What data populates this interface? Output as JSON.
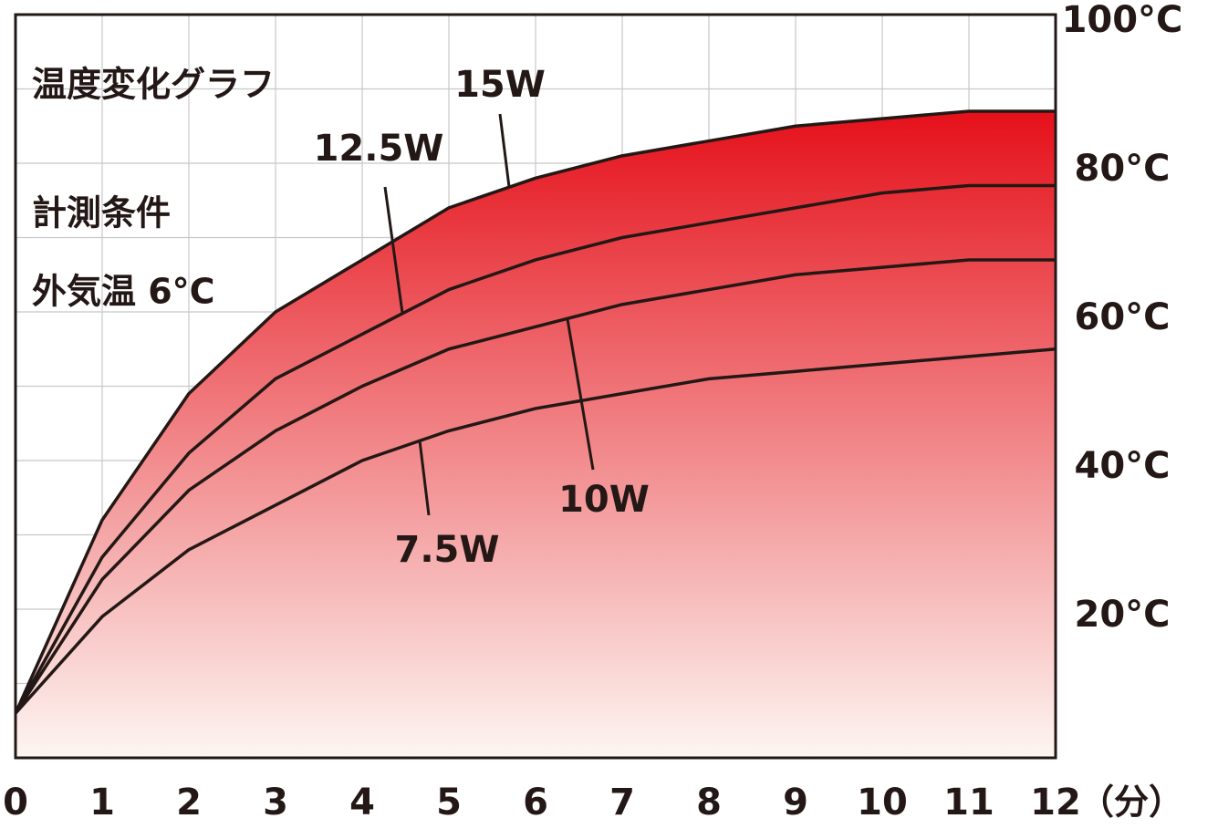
{
  "chart_data": {
    "type": "line",
    "title": "温度変化グラフ",
    "subtitle": "計測条件",
    "annotation": "外気温 6°C",
    "x_unit": "（分）",
    "x": [
      0,
      1,
      2,
      3,
      4,
      5,
      6,
      7,
      8,
      9,
      10,
      11,
      12
    ],
    "series": [
      {
        "name": "15W",
        "color": "#231815",
        "values": [
          6,
          32,
          49,
          60,
          67,
          74,
          78,
          81,
          83,
          85,
          86,
          87,
          87
        ]
      },
      {
        "name": "12.5W",
        "color": "#231815",
        "values": [
          6,
          27,
          41,
          51,
          57,
          63,
          67,
          70,
          72,
          74,
          76,
          77,
          77
        ]
      },
      {
        "name": "10W",
        "color": "#231815",
        "values": [
          6,
          24,
          36,
          44,
          50,
          55,
          58,
          61,
          63,
          65,
          66,
          67,
          67
        ]
      },
      {
        "name": "7.5W",
        "color": "#231815",
        "values": [
          6,
          19,
          28,
          34,
          40,
          44,
          47,
          49,
          51,
          52,
          53,
          54,
          55
        ]
      }
    ],
    "fill_top_color": "#e5101a",
    "fill_bottom_color": "#fdf6f2",
    "xlim": [
      0,
      12
    ],
    "xticks": [
      0,
      1,
      2,
      3,
      4,
      5,
      6,
      7,
      8,
      9,
      10,
      11,
      12
    ],
    "ylim": [
      0,
      100
    ],
    "yticks": [
      {
        "value": 20,
        "label": "20°C"
      },
      {
        "value": 40,
        "label": "40°C"
      },
      {
        "value": 60,
        "label": "60°C"
      },
      {
        "value": 80,
        "label": "80°C"
      },
      {
        "value": 100,
        "label": "100°C"
      }
    ],
    "minor_yticks": [
      10,
      30,
      50,
      70,
      90
    ],
    "grid": true
  }
}
